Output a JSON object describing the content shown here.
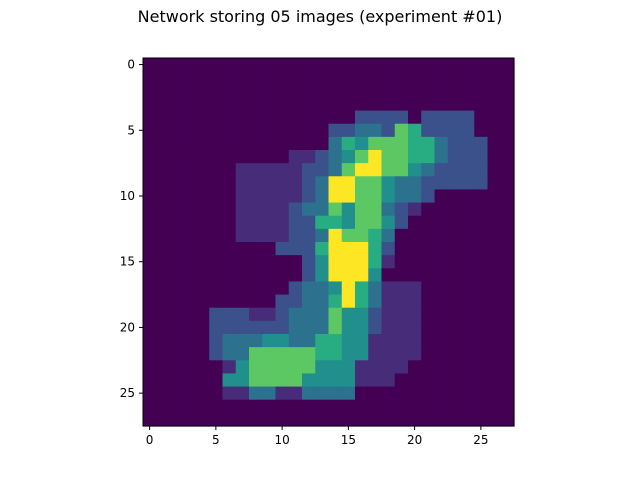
{
  "chart_data": {
    "type": "heatmap",
    "title": "Network storing 05 images (experiment #01)",
    "xlabel": "",
    "ylabel": "",
    "rows": 28,
    "cols": 28,
    "xlim": [
      -0.5,
      27.5
    ],
    "ylim": [
      27.5,
      -0.5
    ],
    "colormap": "viridis",
    "level_colors": [
      "#440154",
      "#472c7a",
      "#3b518b",
      "#2c718e",
      "#21908d",
      "#27ad81",
      "#5cc863",
      "#fde725"
    ],
    "x_ticks": [
      0,
      5,
      10,
      15,
      20,
      25
    ],
    "y_ticks": [
      0,
      5,
      10,
      15,
      20,
      25
    ],
    "x_tick_labels": [
      "0",
      "5",
      "10",
      "15",
      "20",
      "25"
    ],
    "y_tick_labels": [
      "0",
      "5",
      "10",
      "15",
      "20",
      "25"
    ],
    "grid": false,
    "values": [
      [
        0,
        0,
        0,
        0,
        0,
        0,
        0,
        0,
        0,
        0,
        0,
        0,
        0,
        0,
        0,
        0,
        0,
        0,
        0,
        0,
        0,
        0,
        0,
        0,
        0,
        0,
        0,
        0
      ],
      [
        0,
        0,
        0,
        0,
        0,
        0,
        0,
        0,
        0,
        0,
        0,
        0,
        0,
        0,
        0,
        0,
        0,
        0,
        0,
        0,
        0,
        0,
        0,
        0,
        0,
        0,
        0,
        0
      ],
      [
        0,
        0,
        0,
        0,
        0,
        0,
        0,
        0,
        0,
        0,
        0,
        0,
        0,
        0,
        0,
        0,
        0,
        0,
        0,
        0,
        0,
        0,
        0,
        0,
        0,
        0,
        0,
        0
      ],
      [
        0,
        0,
        0,
        0,
        0,
        0,
        0,
        0,
        0,
        0,
        0,
        0,
        0,
        0,
        0,
        0,
        0,
        0,
        0,
        0,
        0,
        0,
        0,
        0,
        0,
        0,
        0,
        0
      ],
      [
        0,
        0,
        0,
        0,
        0,
        0,
        0,
        0,
        0,
        0,
        0,
        0,
        0,
        0,
        0,
        0,
        2,
        2,
        2,
        2,
        0,
        2,
        2,
        2,
        2,
        0,
        0,
        0
      ],
      [
        0,
        0,
        0,
        0,
        0,
        0,
        0,
        0,
        0,
        0,
        0,
        0,
        0,
        0,
        2,
        2,
        3,
        3,
        2,
        6,
        5,
        2,
        2,
        2,
        2,
        0,
        0,
        0
      ],
      [
        0,
        0,
        0,
        0,
        0,
        0,
        0,
        0,
        0,
        0,
        0,
        0,
        0,
        0,
        3,
        5,
        4,
        6,
        6,
        6,
        5,
        5,
        3,
        2,
        2,
        2,
        0,
        0
      ],
      [
        0,
        0,
        0,
        0,
        0,
        0,
        0,
        0,
        0,
        0,
        0,
        1,
        1,
        2,
        3,
        4,
        6,
        7,
        6,
        6,
        5,
        5,
        3,
        2,
        2,
        2,
        0,
        0
      ],
      [
        0,
        0,
        0,
        0,
        0,
        0,
        0,
        1,
        1,
        1,
        1,
        1,
        2,
        2,
        3,
        6,
        7,
        7,
        6,
        6,
        4,
        3,
        2,
        2,
        2,
        2,
        0,
        0
      ],
      [
        0,
        0,
        0,
        0,
        0,
        0,
        0,
        1,
        1,
        1,
        1,
        1,
        2,
        3,
        7,
        7,
        6,
        6,
        4,
        3,
        3,
        2,
        2,
        2,
        2,
        2,
        0,
        0
      ],
      [
        0,
        0,
        0,
        0,
        0,
        0,
        0,
        1,
        1,
        1,
        1,
        1,
        2,
        3,
        7,
        7,
        6,
        6,
        4,
        3,
        3,
        2,
        0,
        0,
        0,
        0,
        0,
        0
      ],
      [
        0,
        0,
        0,
        0,
        0,
        0,
        0,
        1,
        1,
        1,
        1,
        2,
        3,
        3,
        6,
        4,
        6,
        6,
        3,
        2,
        1,
        0,
        0,
        0,
        0,
        0,
        0,
        0
      ],
      [
        0,
        0,
        0,
        0,
        0,
        0,
        0,
        1,
        1,
        1,
        1,
        2,
        2,
        5,
        5,
        4,
        6,
        6,
        4,
        2,
        0,
        0,
        0,
        0,
        0,
        0,
        0,
        0
      ],
      [
        0,
        0,
        0,
        0,
        0,
        0,
        0,
        1,
        1,
        1,
        1,
        2,
        2,
        3,
        7,
        6,
        6,
        5,
        3,
        0,
        0,
        0,
        0,
        0,
        0,
        0,
        0,
        0
      ],
      [
        0,
        0,
        0,
        0,
        0,
        0,
        0,
        0,
        0,
        0,
        2,
        2,
        2,
        5,
        7,
        7,
        7,
        5,
        2,
        0,
        0,
        0,
        0,
        0,
        0,
        0,
        0,
        0
      ],
      [
        0,
        0,
        0,
        0,
        0,
        0,
        0,
        0,
        0,
        0,
        0,
        0,
        2,
        4,
        7,
        7,
        7,
        5,
        1,
        0,
        0,
        0,
        0,
        0,
        0,
        0,
        0,
        0
      ],
      [
        0,
        0,
        0,
        0,
        0,
        0,
        0,
        0,
        0,
        0,
        0,
        0,
        2,
        4,
        7,
        7,
        7,
        4,
        0,
        0,
        0,
        0,
        0,
        0,
        0,
        0,
        0,
        0
      ],
      [
        0,
        0,
        0,
        0,
        0,
        0,
        0,
        0,
        0,
        0,
        0,
        2,
        3,
        3,
        4,
        7,
        5,
        3,
        1,
        1,
        1,
        0,
        0,
        0,
        0,
        0,
        0,
        0
      ],
      [
        0,
        0,
        0,
        0,
        0,
        0,
        0,
        0,
        0,
        0,
        2,
        2,
        3,
        3,
        5,
        7,
        5,
        3,
        1,
        1,
        1,
        0,
        0,
        0,
        0,
        0,
        0,
        0
      ],
      [
        0,
        0,
        0,
        0,
        0,
        2,
        2,
        2,
        1,
        1,
        2,
        3,
        3,
        3,
        6,
        4,
        4,
        2,
        1,
        1,
        1,
        0,
        0,
        0,
        0,
        0,
        0,
        0
      ],
      [
        0,
        0,
        0,
        0,
        0,
        2,
        2,
        2,
        2,
        2,
        2,
        3,
        3,
        3,
        6,
        4,
        4,
        2,
        1,
        1,
        1,
        0,
        0,
        0,
        0,
        0,
        0,
        0
      ],
      [
        0,
        0,
        0,
        0,
        0,
        2,
        3,
        3,
        3,
        4,
        4,
        3,
        3,
        5,
        5,
        4,
        4,
        1,
        1,
        1,
        1,
        0,
        0,
        0,
        0,
        0,
        0,
        0
      ],
      [
        0,
        0,
        0,
        0,
        0,
        2,
        3,
        3,
        6,
        6,
        6,
        6,
        6,
        5,
        5,
        4,
        4,
        1,
        1,
        1,
        1,
        0,
        0,
        0,
        0,
        0,
        0,
        0
      ],
      [
        0,
        0,
        0,
        0,
        0,
        0,
        1,
        4,
        6,
        6,
        6,
        6,
        6,
        4,
        4,
        4,
        1,
        1,
        1,
        1,
        0,
        0,
        0,
        0,
        0,
        0,
        0,
        0
      ],
      [
        0,
        0,
        0,
        0,
        0,
        0,
        4,
        4,
        6,
        6,
        6,
        6,
        4,
        4,
        4,
        4,
        1,
        1,
        1,
        0,
        0,
        0,
        0,
        0,
        0,
        0,
        0,
        0
      ],
      [
        0,
        0,
        0,
        0,
        0,
        0,
        1,
        1,
        3,
        3,
        1,
        1,
        3,
        3,
        3,
        3,
        0,
        0,
        0,
        0,
        0,
        0,
        0,
        0,
        0,
        0,
        0,
        0
      ],
      [
        0,
        0,
        0,
        0,
        0,
        0,
        0,
        0,
        0,
        0,
        0,
        0,
        0,
        0,
        0,
        0,
        0,
        0,
        0,
        0,
        0,
        0,
        0,
        0,
        0,
        0,
        0,
        0
      ],
      [
        0,
        0,
        0,
        0,
        0,
        0,
        0,
        0,
        0,
        0,
        0,
        0,
        0,
        0,
        0,
        0,
        0,
        0,
        0,
        0,
        0,
        0,
        0,
        0,
        0,
        0,
        0,
        0
      ]
    ]
  }
}
